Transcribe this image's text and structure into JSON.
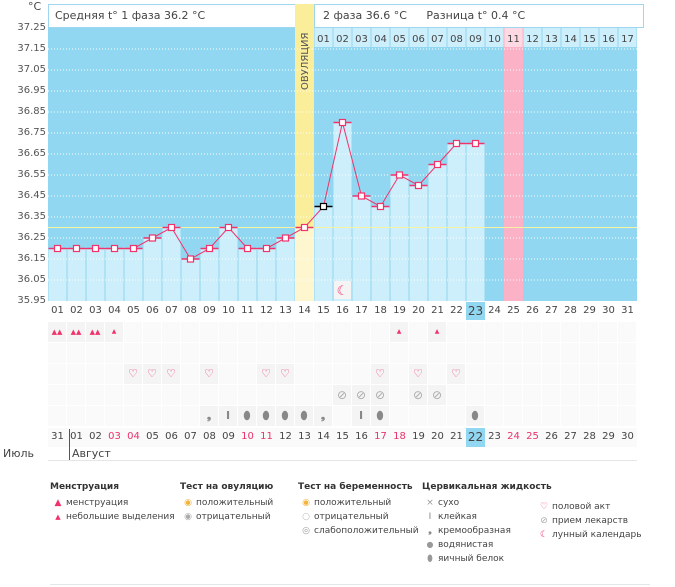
{
  "unit": "°C",
  "header": {
    "phase1": "Средняя t° 1 фаза 36.2 °C",
    "phase2": "2 фаза 36.6 °C",
    "diff": "Разница t° 0.4 °C",
    "sun_icon": "sun-icon"
  },
  "ovulation_label": "ОВУЛЯЦИЯ",
  "colors": {
    "bg": "#92d7f2",
    "bar": "#cdeefb",
    "line": "#f0336b",
    "ovulation": "#fbee9a",
    "highlight": "#fbb1c6",
    "coverline": "#f7f3a0"
  },
  "chart_data": {
    "type": "line",
    "ylim": [
      35.95,
      37.25
    ],
    "yticks": [
      "37.25",
      "37.15",
      "37.05",
      "36.95",
      "36.85",
      "36.75",
      "36.65",
      "36.55",
      "36.45",
      "36.35",
      "36.25",
      "36.15",
      "36.05",
      "35.95"
    ],
    "cycle_days": [
      "01",
      "02",
      "03",
      "04",
      "05",
      "06",
      "07",
      "08",
      "09",
      "10",
      "11",
      "12",
      "13",
      "14",
      "15",
      "16",
      "17",
      "18",
      "19",
      "20",
      "21",
      "22",
      "23",
      "24",
      "25",
      "26",
      "27",
      "28",
      "29",
      "30",
      "31"
    ],
    "values": [
      36.2,
      36.2,
      36.2,
      36.2,
      36.2,
      36.25,
      36.3,
      36.15,
      36.2,
      36.3,
      36.2,
      36.2,
      36.25,
      36.3,
      36.4,
      36.8,
      36.45,
      36.4,
      36.55,
      36.5,
      36.6,
      36.7,
      36.7
    ],
    "coverline": 36.3,
    "ovulation_day": 14,
    "highlight_day": 25,
    "current_day": 23,
    "phase2_days": [
      "01",
      "02",
      "03",
      "04",
      "05",
      "06",
      "07",
      "08",
      "09",
      "10",
      "11",
      "12",
      "13",
      "14",
      "15",
      "16",
      "17"
    ],
    "moon_day": 16
  },
  "calendar": {
    "dates": [
      "31",
      "01",
      "02",
      "03",
      "04",
      "05",
      "06",
      "07",
      "08",
      "09",
      "10",
      "11",
      "12",
      "13",
      "14",
      "15",
      "16",
      "17",
      "18",
      "19",
      "20",
      "21",
      "22",
      "23",
      "24",
      "25",
      "26",
      "27",
      "28",
      "29",
      "30"
    ],
    "weekend_idx": [
      3,
      4,
      10,
      11,
      17,
      18,
      24,
      25
    ],
    "today_idx": 22,
    "month1": "Июль",
    "month2": "Август"
  },
  "rows": {
    "menstruation": {
      "1": "heavy",
      "2": "heavy",
      "3": "heavy",
      "4": "light",
      "19": "light",
      "21": "light"
    },
    "ovulation_test": {},
    "intercourse": [
      5,
      6,
      7,
      9,
      12,
      13,
      18,
      20,
      22
    ],
    "medication": [
      16,
      17,
      18,
      20,
      21
    ],
    "cervical": {
      "9": "creamy",
      "10": "sticky",
      "11": "egg",
      "12": "egg",
      "13": "egg",
      "14": "egg",
      "15": "creamy",
      "17": "sticky",
      "18": "egg",
      "23": "egg"
    }
  },
  "legend": {
    "menstruation": {
      "title": "Менструация",
      "items": [
        "менструация",
        "небольшие выделения"
      ]
    },
    "ovulation_test": {
      "title": "Тест на овуляцию",
      "items": [
        "положительный",
        "отрицательный"
      ]
    },
    "pregnancy_test": {
      "title": "Тест на беременность",
      "items": [
        "положительный",
        "отрицательный",
        "слабоположительный"
      ]
    },
    "cervical": {
      "title": "Цервикальная жидкость",
      "items": [
        "сухо",
        "клейкая",
        "кремообразная",
        "водянистая",
        "яичный белок"
      ]
    },
    "other": {
      "items": [
        "половой акт",
        "прием лекарств",
        "лунный календарь"
      ]
    }
  }
}
